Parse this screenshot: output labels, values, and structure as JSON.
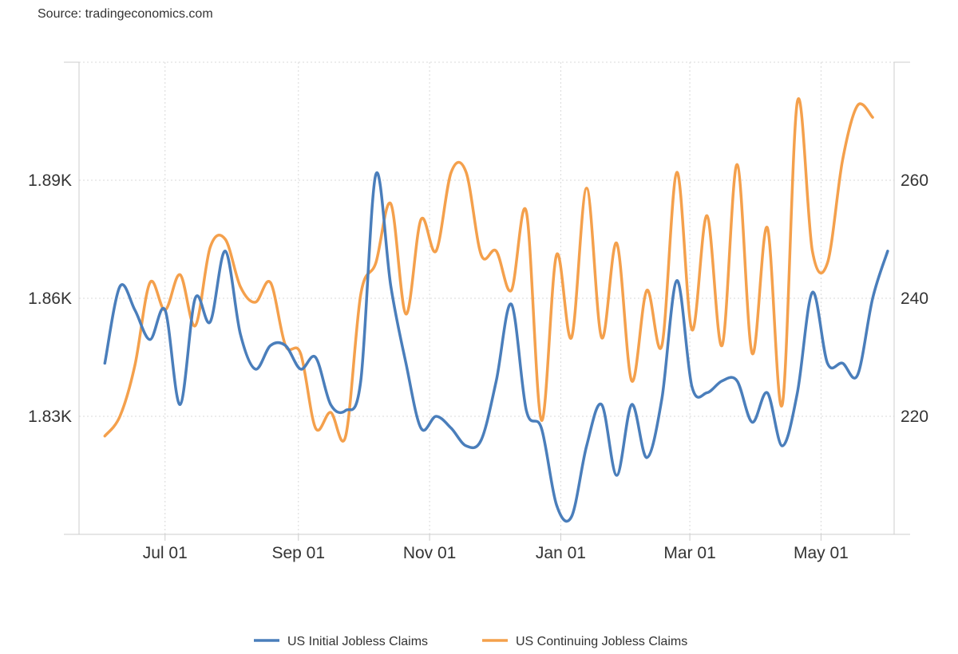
{
  "source": "Source: tradingeconomics.com",
  "chart_data": {
    "type": "line",
    "x_ticks": [
      "Jul 01",
      "Sep 01",
      "Nov 01",
      "Jan 01",
      "Mar 01",
      "May 01"
    ],
    "y_left": {
      "ticks": [
        "1.83K",
        "1.86K",
        "1.89K"
      ],
      "tick_values": [
        1.83,
        1.86,
        1.89
      ],
      "range": [
        1.8,
        1.92
      ]
    },
    "y_right": {
      "ticks": [
        "220",
        "240",
        "260"
      ],
      "tick_values": [
        220,
        240,
        260
      ],
      "range": [
        200,
        280
      ]
    },
    "grid": true,
    "legend_position": "bottom",
    "series": [
      {
        "name": "US Initial Jobless Claims",
        "axis": "right",
        "color": "#4a7ebb",
        "points": [
          [
            "2023-06-03",
            229
          ],
          [
            "2023-06-10",
            242
          ],
          [
            "2023-06-17",
            238
          ],
          [
            "2023-06-24",
            233
          ],
          [
            "2023-07-01",
            238
          ],
          [
            "2023-07-08",
            222
          ],
          [
            "2023-07-15",
            240
          ],
          [
            "2023-07-22",
            236
          ],
          [
            "2023-07-29",
            248
          ],
          [
            "2023-08-05",
            234
          ],
          [
            "2023-08-12",
            228
          ],
          [
            "2023-08-19",
            232
          ],
          [
            "2023-08-26",
            232
          ],
          [
            "2023-09-02",
            228
          ],
          [
            "2023-09-09",
            230
          ],
          [
            "2023-09-16",
            222
          ],
          [
            "2023-09-23",
            221
          ],
          [
            "2023-09-30",
            226
          ],
          [
            "2023-10-07",
            261
          ],
          [
            "2023-10-14",
            242
          ],
          [
            "2023-10-21",
            229
          ],
          [
            "2023-10-28",
            218
          ],
          [
            "2023-11-04",
            220
          ],
          [
            "2023-11-11",
            218
          ],
          [
            "2023-11-18",
            215
          ],
          [
            "2023-11-25",
            216
          ],
          [
            "2023-12-02",
            226
          ],
          [
            "2023-12-09",
            239
          ],
          [
            "2023-12-16",
            221
          ],
          [
            "2023-12-23",
            218
          ],
          [
            "2023-12-30",
            205
          ],
          [
            "2024-01-06",
            203
          ],
          [
            "2024-01-13",
            215
          ],
          [
            "2024-01-20",
            222
          ],
          [
            "2024-01-27",
            210
          ],
          [
            "2024-02-03",
            222
          ],
          [
            "2024-02-10",
            213
          ],
          [
            "2024-02-17",
            223
          ],
          [
            "2024-02-24",
            243
          ],
          [
            "2024-03-02",
            225
          ],
          [
            "2024-03-09",
            224
          ],
          [
            "2024-03-16",
            226
          ],
          [
            "2024-03-23",
            226
          ],
          [
            "2024-03-30",
            219
          ],
          [
            "2024-04-06",
            224
          ],
          [
            "2024-04-13",
            215
          ],
          [
            "2024-04-20",
            224
          ],
          [
            "2024-04-27",
            241
          ],
          [
            "2024-05-04",
            229
          ],
          [
            "2024-05-11",
            229
          ],
          [
            "2024-05-18",
            227
          ],
          [
            "2024-05-25",
            240
          ],
          [
            "2024-06-01",
            248
          ]
        ]
      },
      {
        "name": "US Continuing Jobless Claims",
        "axis": "left",
        "color": "#f4a04c",
        "points": [
          [
            "2023-06-03",
            1.825
          ],
          [
            "2023-06-10",
            1.83
          ],
          [
            "2023-06-17",
            1.843
          ],
          [
            "2023-06-24",
            1.864
          ],
          [
            "2023-07-01",
            1.857
          ],
          [
            "2023-07-08",
            1.866
          ],
          [
            "2023-07-15",
            1.853
          ],
          [
            "2023-07-22",
            1.873
          ],
          [
            "2023-07-29",
            1.875
          ],
          [
            "2023-08-05",
            1.863
          ],
          [
            "2023-08-12",
            1.859
          ],
          [
            "2023-08-19",
            1.864
          ],
          [
            "2023-08-26",
            1.848
          ],
          [
            "2023-09-02",
            1.846
          ],
          [
            "2023-09-09",
            1.827
          ],
          [
            "2023-09-16",
            1.831
          ],
          [
            "2023-09-23",
            1.825
          ],
          [
            "2023-09-30",
            1.861
          ],
          [
            "2023-10-07",
            1.869
          ],
          [
            "2023-10-14",
            1.884
          ],
          [
            "2023-10-21",
            1.856
          ],
          [
            "2023-10-28",
            1.88
          ],
          [
            "2023-11-04",
            1.872
          ],
          [
            "2023-11-11",
            1.892
          ],
          [
            "2023-11-18",
            1.892
          ],
          [
            "2023-11-25",
            1.871
          ],
          [
            "2023-12-02",
            1.872
          ],
          [
            "2023-12-09",
            1.862
          ],
          [
            "2023-12-16",
            1.882
          ],
          [
            "2023-12-23",
            1.829
          ],
          [
            "2023-12-30",
            1.871
          ],
          [
            "2024-01-06",
            1.85
          ],
          [
            "2024-01-13",
            1.888
          ],
          [
            "2024-01-20",
            1.85
          ],
          [
            "2024-01-27",
            1.874
          ],
          [
            "2024-02-03",
            1.839
          ],
          [
            "2024-02-10",
            1.862
          ],
          [
            "2024-02-17",
            1.848
          ],
          [
            "2024-02-24",
            1.892
          ],
          [
            "2024-03-02",
            1.852
          ],
          [
            "2024-03-09",
            1.881
          ],
          [
            "2024-03-16",
            1.848
          ],
          [
            "2024-03-23",
            1.894
          ],
          [
            "2024-03-30",
            1.846
          ],
          [
            "2024-04-06",
            1.878
          ],
          [
            "2024-04-13",
            1.833
          ],
          [
            "2024-04-20",
            1.91
          ],
          [
            "2024-04-27",
            1.872
          ],
          [
            "2024-05-04",
            1.869
          ],
          [
            "2024-05-11",
            1.895
          ],
          [
            "2024-05-18",
            1.909
          ],
          [
            "2024-05-25",
            1.906
          ]
        ]
      }
    ]
  }
}
